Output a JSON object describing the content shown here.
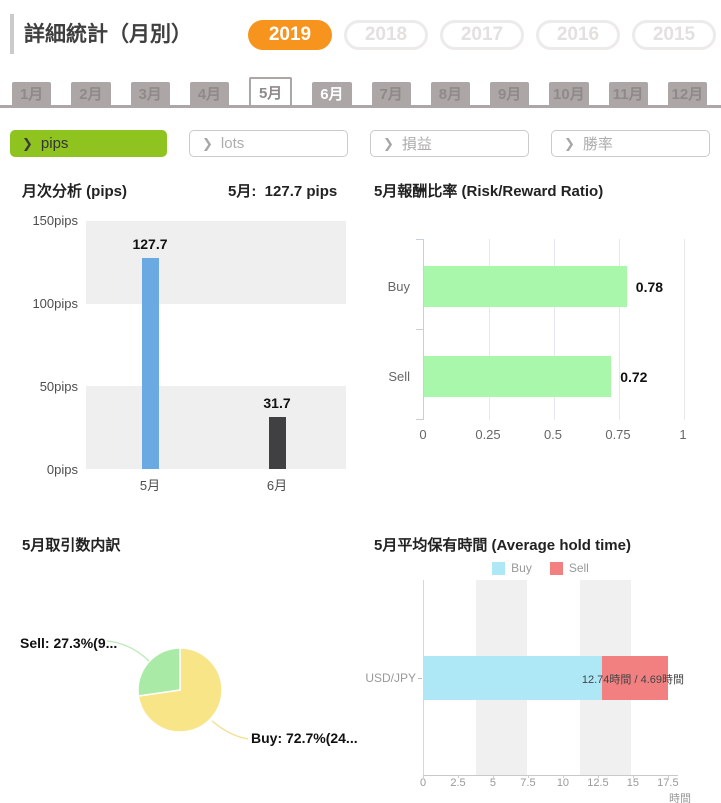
{
  "header": {
    "title": "詳細統計（月別）",
    "years": [
      {
        "label": "2019",
        "active": true
      },
      {
        "label": "2018",
        "active": false
      },
      {
        "label": "2017",
        "active": false
      },
      {
        "label": "2016",
        "active": false
      },
      {
        "label": "2015",
        "active": false
      }
    ]
  },
  "month_tabs": [
    {
      "label": "1月"
    },
    {
      "label": "2月"
    },
    {
      "label": "3月"
    },
    {
      "label": "4月"
    },
    {
      "label": "5月",
      "selected": true
    },
    {
      "label": "6月",
      "highlight": true
    },
    {
      "label": "7月"
    },
    {
      "label": "8月"
    },
    {
      "label": "9月"
    },
    {
      "label": "10月"
    },
    {
      "label": "11月"
    },
    {
      "label": "12月"
    }
  ],
  "filters": [
    {
      "label": "pips",
      "active": true
    },
    {
      "label": "lots",
      "active": false
    },
    {
      "label": "損益",
      "active": false
    },
    {
      "label": "勝率",
      "active": false
    }
  ],
  "monthly_chart": {
    "title": "月次分析 (pips)",
    "subtitle": "5月:  127.7 pips",
    "chart_data": {
      "type": "bar",
      "categories": [
        "5月",
        "6月"
      ],
      "values": [
        127.7,
        31.7
      ],
      "value_labels": [
        "127.7",
        "31.7"
      ],
      "yticks": [
        "150pips",
        "100pips",
        "50pips",
        "0pips"
      ],
      "ylim": [
        0,
        150
      ],
      "bar_colors": [
        "#6AA9E2",
        "#403F41"
      ]
    }
  },
  "risk_reward_chart": {
    "title": "5月報酬比率 (Risk/Reward Ratio)",
    "chart_data": {
      "type": "bar-horizontal",
      "categories": [
        "Buy",
        "Sell"
      ],
      "values": [
        0.78,
        0.72
      ],
      "value_labels": [
        "0.78",
        "0.72"
      ],
      "xticks": [
        "0",
        "0.25",
        "0.5",
        "0.75",
        "1"
      ],
      "xlim": [
        0,
        1
      ],
      "bar_color": "#A9F7AB"
    }
  },
  "breakdown_chart": {
    "title": "5月取引数内訳",
    "chart_data": {
      "type": "pie",
      "slices": [
        {
          "name": "Buy",
          "label": "Buy: 72.7%(24...",
          "value": 72.7,
          "color": "#F8E588"
        },
        {
          "name": "Sell",
          "label": "Sell: 27.3%(9...",
          "value": 27.3,
          "color": "#A9EBA6"
        }
      ]
    }
  },
  "hold_time_chart": {
    "title": "5月平均保有時間 (Average hold time)",
    "legend": [
      {
        "name": "Buy",
        "color": "#AEE7F5"
      },
      {
        "name": "Sell",
        "color": "#F28081"
      }
    ],
    "chart_data": {
      "type": "stacked-bar-horizontal",
      "categories": [
        "USD/JPY"
      ],
      "series": [
        {
          "name": "Buy",
          "values": [
            12.74
          ],
          "color": "#AEE7F5"
        },
        {
          "name": "Sell",
          "values": [
            4.69
          ],
          "color": "#F28081"
        }
      ],
      "bar_label": "12.74時間 / 4.69時間",
      "xticks": [
        "0",
        "2.5",
        "5",
        "7.5",
        "10",
        "12.5",
        "15",
        "17.5"
      ],
      "xtick_values": [
        0,
        2.5,
        5,
        7.5,
        10,
        12.5,
        15,
        17.5
      ],
      "xlabel": "時間",
      "xlim": [
        0,
        18.15
      ]
    }
  },
  "colors": {
    "accent_orange": "#F7941E",
    "accent_green": "#8FC31F",
    "tab_gray": "#ACA6A6",
    "band_gray": "#F0EFEF",
    "leader_green": "#BCE8B8",
    "leader_yellow": "#F2DF8E"
  }
}
